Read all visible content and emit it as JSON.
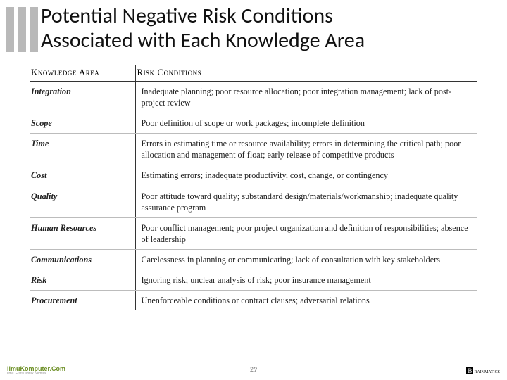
{
  "title_line1": "Potential Negative Risk Conditions",
  "title_line2": "Associated with Each Knowledge Area",
  "table": {
    "header_area": "Knowledge Area",
    "header_cond": "Risk Conditions",
    "rows": [
      {
        "area": "Integration",
        "cond": "Inadequate planning; poor resource allocation; poor integration management; lack of post-project review"
      },
      {
        "area": "Scope",
        "cond": "Poor definition of scope or work packages; incomplete definition"
      },
      {
        "area": "Time",
        "cond": "Errors in estimating time or resource availability; errors in determining the critical path; poor allocation and management of float; early release of competitive products"
      },
      {
        "area": "Cost",
        "cond": "Estimating errors; inadequate productivity, cost, change, or contingency"
      },
      {
        "area": "Quality",
        "cond": "Poor attitude toward quality; substandard design/materials/workmanship; inadequate quality assurance program"
      },
      {
        "area": "Human Resources",
        "cond": "Poor conflict management; poor project organization and definition of responsibilities; absence of leadership"
      },
      {
        "area": "Communications",
        "cond": "Carelessness in planning or communicating; lack of consultation with key stakeholders"
      },
      {
        "area": "Risk",
        "cond": "Ignoring risk; unclear analysis of risk; poor insurance management"
      },
      {
        "area": "Procurement",
        "cond": "Unenforceable conditions or contract clauses; adversarial relations"
      }
    ]
  },
  "footer": {
    "left_logo_main": "IlmuKomputer.Com",
    "left_logo_sub": "Ilmu Gratis untuk Semua",
    "page_number": "29",
    "right_logo_b": "B",
    "right_logo_rest": "rainmatics"
  },
  "colors": {
    "bar": "#b9b9b9",
    "text": "#222222",
    "border_strong": "#333333",
    "border_light": "#bcbcbc",
    "logo_green": "#6b8e23"
  }
}
